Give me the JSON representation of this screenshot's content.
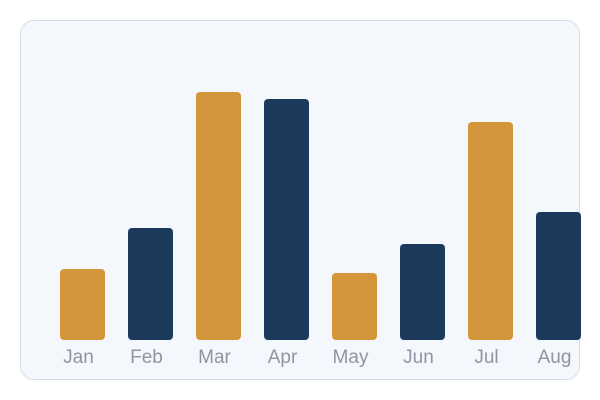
{
  "chart_data": {
    "type": "bar",
    "categories": [
      "Jan",
      "Feb",
      "Mar",
      "Apr",
      "May",
      "Jun",
      "Jul",
      "Aug"
    ],
    "values": [
      71,
      112,
      248,
      241,
      67,
      96,
      218,
      128
    ],
    "colors": [
      "#d4963a",
      "#1b3a5c",
      "#d4963a",
      "#1b3a5c",
      "#d4963a",
      "#1b3a5c",
      "#d4963a",
      "#1b3a5c"
    ],
    "ylim": [
      0,
      270
    ],
    "grid": false,
    "legend": "none",
    "title": "",
    "xlabel": "",
    "ylabel": ""
  }
}
